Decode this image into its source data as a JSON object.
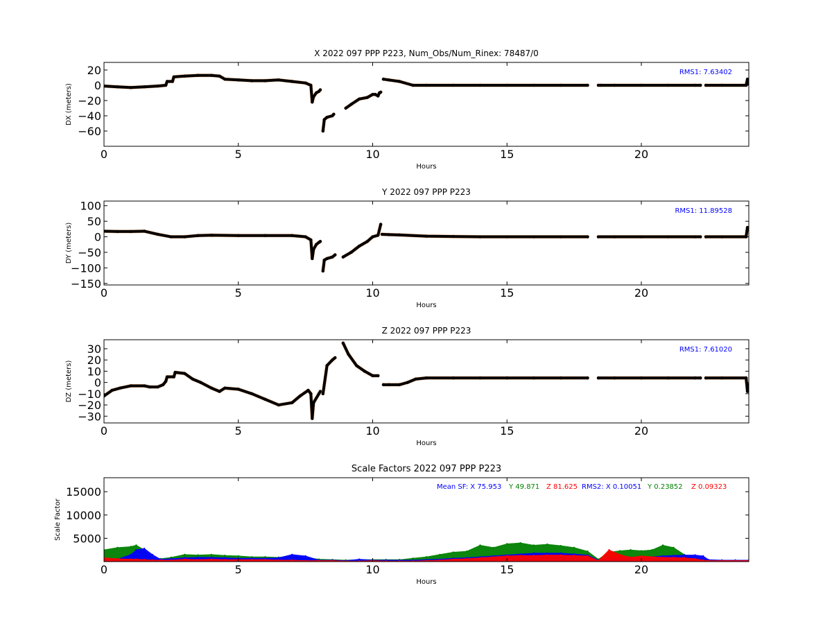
{
  "colors": {
    "track": "#000000",
    "raw": "#e87b2c",
    "rms": "#0000ff",
    "sf_x": "#0000ff",
    "sf_y": "#008000",
    "sf_z": "#ff0000"
  },
  "chart_data": [
    {
      "type": "scatter",
      "title": "X 2022 097 PPP  P223, Num_Obs/Num_Rinex: 78487/0",
      "xlabel": "Hours",
      "ylabel": "DX (meters)",
      "xlim": [
        0,
        24
      ],
      "ylim": [
        -80,
        30
      ],
      "xticks": [
        "0",
        "5",
        "10",
        "15",
        "20"
      ],
      "yticks": [
        "20",
        "0",
        "−20",
        "−40",
        "−60"
      ],
      "ytick_values": [
        20,
        0,
        -20,
        -40,
        -60
      ],
      "annotation": "RMS1:  7.63402",
      "series": [
        {
          "x": [
            0,
            0.5,
            1,
            1.5,
            2,
            2.3,
            2.35,
            2.55,
            2.6,
            3,
            3.5,
            4,
            4.3,
            4.5,
            5,
            5.5,
            6,
            6.5,
            7,
            7.5,
            7.7,
            7.75,
            7.8,
            7.9,
            8.0,
            8.05
          ],
          "y": [
            -1,
            -2,
            -3,
            -2,
            -1,
            0,
            5,
            5,
            11,
            12,
            13,
            13,
            12,
            8,
            7,
            6,
            6,
            7,
            5,
            3,
            0,
            -22,
            -15,
            -10,
            -8,
            -6
          ]
        },
        {
          "x": [
            8.15,
            8.2,
            8.3,
            8.5,
            8.55
          ],
          "y": [
            -60,
            -45,
            -42,
            -40,
            -38
          ]
        },
        {
          "x": [
            9.0,
            9.2,
            9.5,
            9.8,
            10.0,
            10.1,
            10.2,
            10.25,
            10.3
          ],
          "y": [
            -30,
            -25,
            -18,
            -16,
            -12,
            -12,
            -14,
            -10,
            -9
          ]
        },
        {
          "x": [
            10.4,
            10.6,
            11.0,
            11.5,
            12,
            13,
            14,
            15,
            16,
            17,
            18
          ],
          "y": [
            8,
            7,
            5,
            0,
            0,
            0,
            0,
            0,
            0,
            0,
            0
          ]
        },
        {
          "x": [
            18.4,
            18.5,
            19,
            20,
            21,
            22,
            22.2
          ],
          "y": [
            0,
            0,
            0,
            0,
            0,
            0,
            0
          ]
        },
        {
          "x": [
            22.4,
            23,
            23.9,
            23.95,
            24
          ],
          "y": [
            0,
            0,
            0,
            8,
            2
          ]
        }
      ]
    },
    {
      "type": "scatter",
      "title": "Y 2022 097 PPP  P223",
      "xlabel": "Hours",
      "ylabel": "DY (meters)",
      "xlim": [
        0,
        24
      ],
      "ylim": [
        -155,
        115
      ],
      "xticks": [
        "0",
        "5",
        "10",
        "15",
        "20"
      ],
      "yticks": [
        "100",
        "50",
        "0",
        "−50",
        "−100",
        "−150"
      ],
      "ytick_values": [
        100,
        50,
        0,
        -50,
        -100,
        -150
      ],
      "annotation": "RMS1: 11.89528",
      "series": [
        {
          "x": [
            0,
            0.5,
            1,
            1.5,
            2,
            2.5,
            3,
            3.5,
            4,
            5,
            6,
            7,
            7.5,
            7.7,
            7.75,
            7.8,
            7.9,
            8.0,
            8.05
          ],
          "y": [
            18,
            17,
            17,
            18,
            8,
            0,
            0,
            4,
            5,
            4,
            4,
            4,
            0,
            -10,
            -70,
            -40,
            -25,
            -18,
            -15
          ]
        },
        {
          "x": [
            8.15,
            8.2,
            8.3,
            8.5,
            8.6
          ],
          "y": [
            -110,
            -75,
            -70,
            -65,
            -58
          ]
        },
        {
          "x": [
            8.9,
            9.2,
            9.5,
            9.8,
            10.0,
            10.2,
            10.3
          ],
          "y": [
            -65,
            -50,
            -30,
            -15,
            0,
            5,
            40
          ]
        },
        {
          "x": [
            10.35,
            10.6,
            11,
            12,
            13,
            14,
            15,
            16,
            17,
            18
          ],
          "y": [
            8,
            7,
            6,
            2,
            1,
            0,
            0,
            0,
            0,
            0
          ]
        },
        {
          "x": [
            18.4,
            19,
            20,
            21,
            22,
            22.2
          ],
          "y": [
            0,
            0,
            0,
            0,
            0,
            0
          ]
        },
        {
          "x": [
            22.4,
            23,
            23.9,
            23.95,
            24
          ],
          "y": [
            0,
            0,
            0,
            30,
            28
          ]
        }
      ]
    },
    {
      "type": "scatter",
      "title": "Z 2022 097 PPP  P223",
      "xlabel": "Hours",
      "ylabel": "DZ (meters)",
      "xlim": [
        0,
        24
      ],
      "ylim": [
        -36,
        38
      ],
      "xticks": [
        "0",
        "5",
        "10",
        "15",
        "20"
      ],
      "yticks": [
        "30",
        "20",
        "10",
        "0",
        "−10",
        "−20",
        "−30"
      ],
      "ytick_values": [
        30,
        20,
        10,
        0,
        -10,
        -20,
        -30
      ],
      "annotation": "RMS1:  7.61020",
      "series": [
        {
          "x": [
            0,
            0.3,
            0.6,
            1,
            1.5,
            1.7,
            2,
            2.2,
            2.3,
            2.35,
            2.6,
            2.65,
            3.0,
            3.3,
            3.6,
            4,
            4.3,
            4.5,
            5,
            5.5,
            6,
            6.5,
            7.0,
            7.3,
            7.6,
            7.7,
            7.75,
            7.8,
            8.0,
            8.05
          ],
          "y": [
            -12,
            -7,
            -5,
            -3,
            -3,
            -4,
            -4,
            -2,
            1,
            5,
            5,
            9,
            8,
            3,
            0,
            -5,
            -8,
            -5,
            -6,
            -10,
            -15,
            -20,
            -18,
            -12,
            -7,
            -10,
            -32,
            -18,
            -10,
            -8
          ]
        },
        {
          "x": [
            8.15,
            8.3,
            8.5,
            8.6
          ],
          "y": [
            -10,
            15,
            20,
            22
          ]
        },
        {
          "x": [
            8.9,
            9.1,
            9.4,
            9.7,
            10.0,
            10.2
          ],
          "y": [
            35,
            25,
            15,
            10,
            6,
            6
          ]
        },
        {
          "x": [
            10.4,
            10.6,
            11,
            11.3,
            11.6,
            12,
            13,
            14,
            15,
            16,
            17,
            18
          ],
          "y": [
            -2,
            -2,
            -2,
            0,
            3,
            4,
            4,
            4,
            4,
            4,
            4,
            4
          ]
        },
        {
          "x": [
            18.4,
            19,
            20,
            21,
            22,
            22.2
          ],
          "y": [
            4,
            4,
            4,
            4,
            4,
            4
          ]
        },
        {
          "x": [
            22.4,
            23,
            23.9,
            23.95,
            24
          ],
          "y": [
            4,
            4,
            4,
            -8,
            -2
          ]
        }
      ]
    },
    {
      "type": "area",
      "title": "Scale Factors 2022 097 PPP  P223",
      "xlabel": "Hours",
      "ylabel": "Scale Factor",
      "xlim": [
        0,
        24
      ],
      "ylim": [
        0,
        18000
      ],
      "xticks": [
        "0",
        "5",
        "10",
        "15",
        "20"
      ],
      "yticks": [
        "15000",
        "10000",
        "5000"
      ],
      "ytick_values": [
        15000,
        10000,
        5000
      ],
      "annotation": {
        "mean_label": "Mean SF: X  75.953",
        "mean_y": "Y  49.871",
        "mean_z": "Z  81.625",
        "rms2_label": "RMS2: X  0.10051",
        "rms2_y": "Y  0.23852",
        "rms2_z": "Z  0.09323"
      },
      "x": [
        0,
        0.5,
        1,
        1.2,
        1.5,
        1.8,
        2.1,
        2.5,
        3,
        3.5,
        4,
        4.5,
        5,
        5.5,
        6,
        6.5,
        7,
        7.5,
        8,
        8.5,
        9,
        9.5,
        10,
        10.5,
        11,
        11.5,
        12,
        12.5,
        13,
        13.5,
        14,
        14.5,
        15,
        15.5,
        16,
        16.5,
        17,
        17.5,
        18,
        18.4,
        18.8,
        19.2,
        19.6,
        20,
        20.4,
        20.8,
        21.2,
        21.6,
        22,
        22.3,
        22.5,
        23,
        23.5,
        24
      ],
      "series": [
        {
          "name": "X",
          "values": [
            300,
            500,
            1500,
            2500,
            2800,
            1500,
            500,
            600,
            800,
            900,
            900,
            800,
            700,
            700,
            700,
            800,
            1500,
            1200,
            300,
            300,
            200,
            500,
            300,
            300,
            300,
            300,
            400,
            500,
            700,
            800,
            1000,
            1200,
            1400,
            1600,
            1800,
            1800,
            1800,
            1600,
            1400,
            300,
            800,
            900,
            900,
            1000,
            1000,
            1200,
            1300,
            1400,
            1400,
            1200,
            400,
            300,
            300,
            300
          ]
        },
        {
          "name": "Y",
          "values": [
            2500,
            3000,
            3200,
            3500,
            2500,
            800,
            600,
            900,
            1500,
            1400,
            1500,
            1300,
            1200,
            1000,
            1000,
            900,
            1200,
            900,
            500,
            400,
            300,
            400,
            400,
            400,
            400,
            700,
            1000,
            1500,
            2000,
            2200,
            3500,
            3000,
            3800,
            4000,
            3500,
            3700,
            3400,
            3000,
            2200,
            500,
            2000,
            2300,
            2500,
            2300,
            2500,
            3500,
            3000,
            1500,
            700,
            500,
            300,
            300,
            300,
            300
          ]
        },
        {
          "name": "Z",
          "values": [
            800,
            600,
            500,
            500,
            400,
            300,
            300,
            300,
            500,
            400,
            500,
            400,
            400,
            400,
            400,
            300,
            300,
            200,
            200,
            200,
            100,
            100,
            200,
            100,
            100,
            100,
            200,
            300,
            500,
            600,
            800,
            1000,
            1200,
            1300,
            1300,
            1400,
            1400,
            1300,
            1200,
            200,
            2500,
            1500,
            900,
            1200,
            1000,
            900,
            900,
            800,
            600,
            300,
            200,
            200,
            200,
            200
          ]
        }
      ]
    }
  ]
}
